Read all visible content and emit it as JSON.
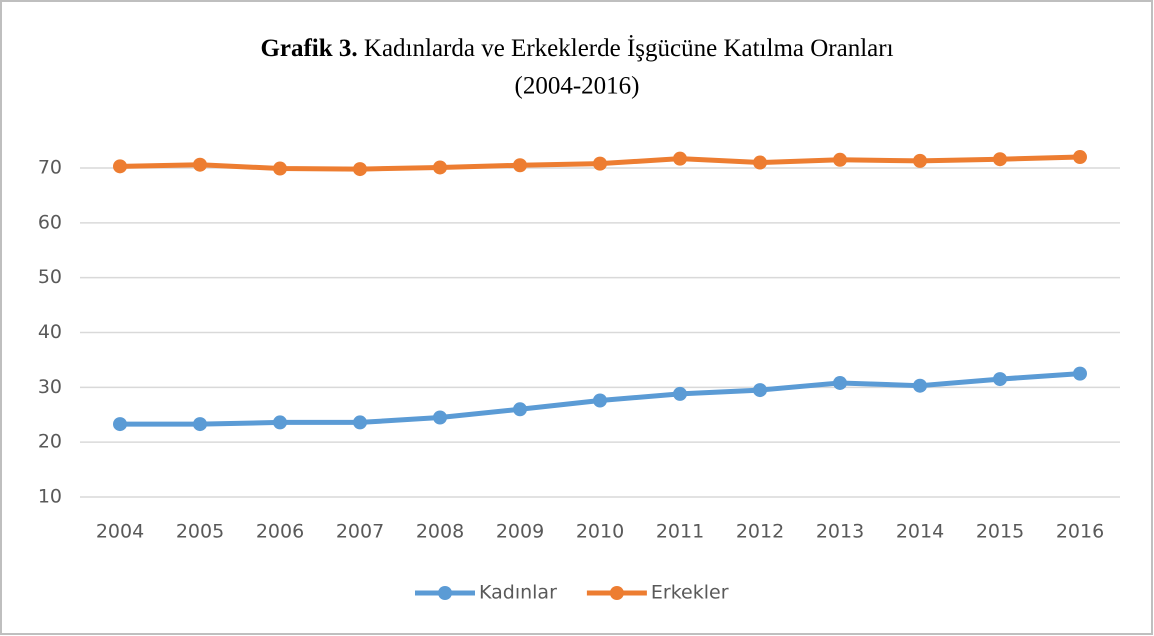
{
  "chart_data": {
    "type": "line",
    "title_label": "Grafik 3.",
    "title": "Kadınlarda ve Erkeklerde İşgücüne Katılma  Oranları",
    "subtitle": "(2004-2016)",
    "categories": [
      "2004",
      "2005",
      "2006",
      "2007",
      "2008",
      "2009",
      "2010",
      "2011",
      "2012",
      "2013",
      "2014",
      "2015",
      "2016"
    ],
    "series": [
      {
        "name": "Kadınlar",
        "color": "#5b9bd5",
        "values": [
          23.3,
          23.3,
          23.6,
          23.6,
          24.5,
          26.0,
          27.6,
          28.8,
          29.5,
          30.8,
          30.3,
          31.5,
          32.5
        ]
      },
      {
        "name": "Erkekler",
        "color": "#ed7d31",
        "values": [
          70.3,
          70.6,
          69.9,
          69.8,
          70.1,
          70.5,
          70.8,
          71.7,
          71.0,
          71.5,
          71.3,
          71.6,
          72.0
        ]
      }
    ],
    "ylim": [
      10,
      70
    ],
    "yticks": [
      10,
      20,
      30,
      40,
      50,
      60,
      70
    ],
    "grid": true,
    "legend": "bottom"
  }
}
